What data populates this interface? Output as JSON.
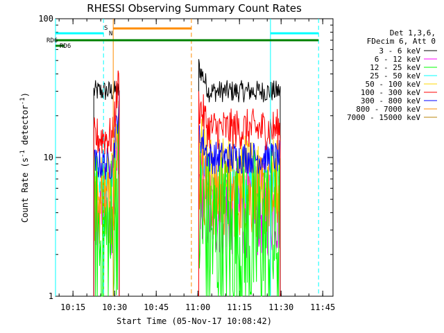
{
  "chart_data": {
    "type": "line",
    "title": "RHESSI Observing Summary Count Rates",
    "xlabel": "Start Time (05-Nov-17 10:08:42)",
    "ylabel_main": "Count Rate (s",
    "ylabel_sup1": "-1",
    "ylabel_mid": " detector",
    "ylabel_sup2": "-1",
    "ylabel_end": ")",
    "y_scale": "log",
    "ylim": [
      1,
      100
    ],
    "xlim_minutes": [
      "10:08:42",
      "11:48:42"
    ],
    "x_ticks": [
      "10:15",
      "10:30",
      "10:45",
      "11:00",
      "11:15",
      "11:30",
      "11:45"
    ],
    "y_ticks": [
      "1",
      "10",
      "100"
    ],
    "legend_header": [
      "Det 1,3,6,",
      "FDecim 6, Att 0"
    ],
    "legend_position": "right",
    "series": [
      {
        "name": "3 - 6 keV",
        "color": "#000000",
        "levels": [
          30,
          30
        ]
      },
      {
        "name": "6 - 12 keV",
        "color": "#ff00ff",
        "levels": [
          4.2,
          4.2
        ]
      },
      {
        "name": "12 - 25 keV",
        "color": "#00ff00",
        "levels": [
          2.5,
          2.5
        ]
      },
      {
        "name": "25 - 50 keV",
        "color": "#00ffff",
        "levels": [
          6.8,
          6.5
        ]
      },
      {
        "name": "50 - 100 keV",
        "color": "#ffd700",
        "levels": [
          5.5,
          7.5
        ]
      },
      {
        "name": "100 - 300 keV",
        "color": "#ff0000",
        "levels": [
          14,
          16
        ]
      },
      {
        "name": "300 - 800 keV",
        "color": "#0000ff",
        "levels": [
          9,
          10
        ]
      },
      {
        "name": "800 - 7000 keV",
        "color": "#ff8c00",
        "levels": [
          4.6,
          5.2
        ]
      },
      {
        "name": "7000 - 15000 keV",
        "color": "#b8860b",
        "levels": [
          0,
          0
        ]
      }
    ],
    "data_intervals": [
      [
        "10:22:30",
        "10:31:40"
      ],
      [
        "11:00:20",
        "11:29:40"
      ]
    ],
    "markers": {
      "saa_label": "S",
      "night_label": "N",
      "rd_label": "RD6"
    }
  }
}
